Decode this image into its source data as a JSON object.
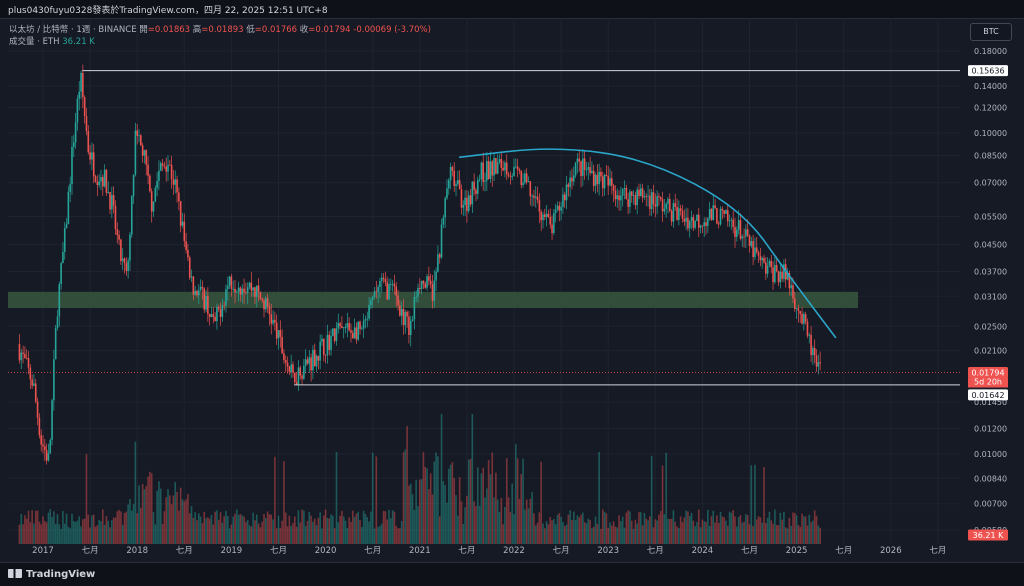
{
  "header": {
    "title": "plus0430fuyu0328發表於TradingView.com，四月 22, 2025 12:51 UTC+8"
  },
  "legend": {
    "symbol": "以太坊 / 比特幣 · 1週 · BINANCE",
    "open_label": "開",
    "open": "=0.01863",
    "high_label": "高",
    "high": "=0.01893",
    "low_label": "低",
    "low": "=0.01766",
    "close_label": "收",
    "close": "=0.01794",
    "change": "-0.00069 (-3.70%)",
    "volume_label": "成交量 · ETH",
    "volume": "36.21 K"
  },
  "currency_button": "BTC",
  "footer": {
    "brand": "TradingView"
  },
  "colors": {
    "background": "#161a25",
    "up": "#26a69a",
    "down": "#ef5350",
    "arc": "#2aa6c9",
    "zone": "#3a5a40",
    "level_line": "#d1d4dc"
  },
  "chart_data": {
    "type": "candlestick",
    "scale": "log",
    "symbol": "ETH/BTC",
    "interval": "1W",
    "exchange": "BINANCE",
    "y_ticks": [
      "0.18000",
      "0.14000",
      "0.12000",
      "0.10000",
      "0.08500",
      "0.07000",
      "0.05500",
      "0.04500",
      "0.03700",
      "0.03100",
      "0.02500",
      "0.02100",
      "0.01450",
      "0.01200",
      "0.01000",
      "0.00840",
      "0.00700",
      "0.00580"
    ],
    "x_ticks": [
      "2017",
      "七月",
      "2018",
      "七月",
      "2019",
      "七月",
      "2020",
      "七月",
      "2021",
      "七月",
      "2022",
      "七月",
      "2023",
      "七月",
      "2024",
      "七月",
      "2025",
      "七月",
      "2026",
      "七月"
    ],
    "price_path": [
      {
        "date": "2016-10",
        "value": 0.022
      },
      {
        "date": "2016-12",
        "value": 0.0165
      },
      {
        "date": "2017-01",
        "value": 0.011
      },
      {
        "date": "2017-02",
        "value": 0.0095
      },
      {
        "date": "2017-03",
        "value": 0.028
      },
      {
        "date": "2017-04",
        "value": 0.047
      },
      {
        "date": "2017-05",
        "value": 0.09
      },
      {
        "date": "2017-06",
        "value": 0.15
      },
      {
        "date": "2017-07",
        "value": 0.09
      },
      {
        "date": "2017-08",
        "value": 0.075
      },
      {
        "date": "2017-09",
        "value": 0.073
      },
      {
        "date": "2017-10",
        "value": 0.06
      },
      {
        "date": "2017-11",
        "value": 0.042
      },
      {
        "date": "2017-12",
        "value": 0.035
      },
      {
        "date": "2018-01",
        "value": 0.095
      },
      {
        "date": "2018-02",
        "value": 0.088
      },
      {
        "date": "2018-03",
        "value": 0.06
      },
      {
        "date": "2018-04",
        "value": 0.075
      },
      {
        "date": "2018-05",
        "value": 0.083
      },
      {
        "date": "2018-06",
        "value": 0.07
      },
      {
        "date": "2018-07",
        "value": 0.05
      },
      {
        "date": "2018-08",
        "value": 0.034
      },
      {
        "date": "2018-10",
        "value": 0.03
      },
      {
        "date": "2018-11",
        "value": 0.025
      },
      {
        "date": "2019-01",
        "value": 0.035
      },
      {
        "date": "2019-04",
        "value": 0.033
      },
      {
        "date": "2019-06",
        "value": 0.028
      },
      {
        "date": "2019-08",
        "value": 0.02
      },
      {
        "date": "2019-09",
        "value": 0.0173
      },
      {
        "date": "2019-12",
        "value": 0.0205
      },
      {
        "date": "2020-03",
        "value": 0.0245
      },
      {
        "date": "2020-06",
        "value": 0.024
      },
      {
        "date": "2020-08",
        "value": 0.034
      },
      {
        "date": "2020-10",
        "value": 0.032
      },
      {
        "date": "2020-12",
        "value": 0.024
      },
      {
        "date": "2021-01",
        "value": 0.035
      },
      {
        "date": "2021-03",
        "value": 0.032
      },
      {
        "date": "2021-05",
        "value": 0.075
      },
      {
        "date": "2021-07",
        "value": 0.06
      },
      {
        "date": "2021-09",
        "value": 0.075
      },
      {
        "date": "2021-12",
        "value": 0.08
      },
      {
        "date": "2022-03",
        "value": 0.068
      },
      {
        "date": "2022-06",
        "value": 0.05
      },
      {
        "date": "2022-09",
        "value": 0.08
      },
      {
        "date": "2022-12",
        "value": 0.073
      },
      {
        "date": "2023-03",
        "value": 0.064
      },
      {
        "date": "2023-06",
        "value": 0.064
      },
      {
        "date": "2023-09",
        "value": 0.058
      },
      {
        "date": "2023-12",
        "value": 0.053
      },
      {
        "date": "2024-03",
        "value": 0.056
      },
      {
        "date": "2024-06",
        "value": 0.05
      },
      {
        "date": "2024-09",
        "value": 0.038
      },
      {
        "date": "2024-12",
        "value": 0.036
      },
      {
        "date": "2025-02",
        "value": 0.026
      },
      {
        "date": "2025-04",
        "value": 0.01794
      }
    ],
    "annotations": {
      "resistance_level": "0.15636",
      "support_level": "0.01642",
      "current_price": "0.01794",
      "countdown": "5d 20h",
      "last_volume": "36.21 K",
      "support_zone": [
        0.0285,
        0.032
      ],
      "arc": [
        {
          "date": "2021-06",
          "value": 0.084
        },
        {
          "date": "2022-06",
          "value": 0.091
        },
        {
          "date": "2023-06",
          "value": 0.083
        },
        {
          "date": "2024-06",
          "value": 0.058
        },
        {
          "date": "2024-12",
          "value": 0.036
        },
        {
          "date": "2025-06",
          "value": 0.023
        }
      ]
    }
  }
}
